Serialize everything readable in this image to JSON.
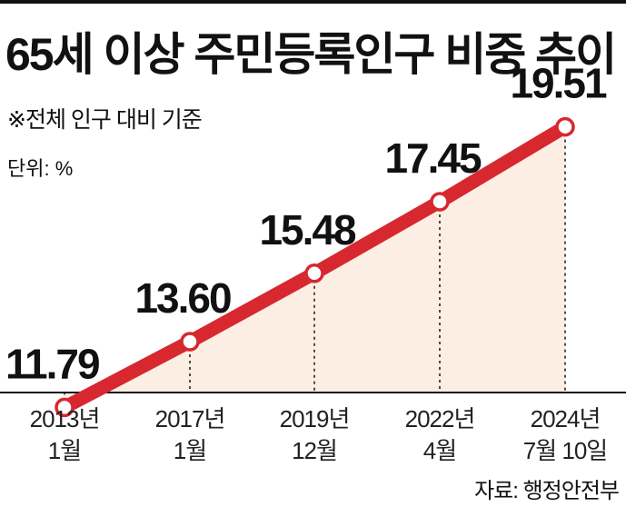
{
  "title": "65세 이상 주민등록인구 비중 추이",
  "note": "※전체 인구 대비 기준",
  "unit": "단위: %",
  "source": "자료: 행정안전부",
  "colors": {
    "line": "#d7282f",
    "fill": "#fdeee4",
    "point_fill": "#ffffff"
  },
  "chart_data": {
    "type": "line",
    "title": "65세 이상 주민등록인구 비중 추이",
    "xlabel": "",
    "ylabel": "단위: %",
    "categories": [
      [
        "2013년",
        "1월"
      ],
      [
        "2017년",
        "1월"
      ],
      [
        "2019년",
        "12월"
      ],
      [
        "2022년",
        "4월"
      ],
      [
        "2024년",
        "7월 10일"
      ]
    ],
    "values": [
      11.79,
      13.6,
      15.48,
      17.45,
      19.51
    ],
    "value_labels": [
      "11.79",
      "13.60",
      "15.48",
      "17.45",
      "19.51"
    ],
    "ylim": [
      10,
      21
    ],
    "grid": false,
    "legend": "none"
  }
}
